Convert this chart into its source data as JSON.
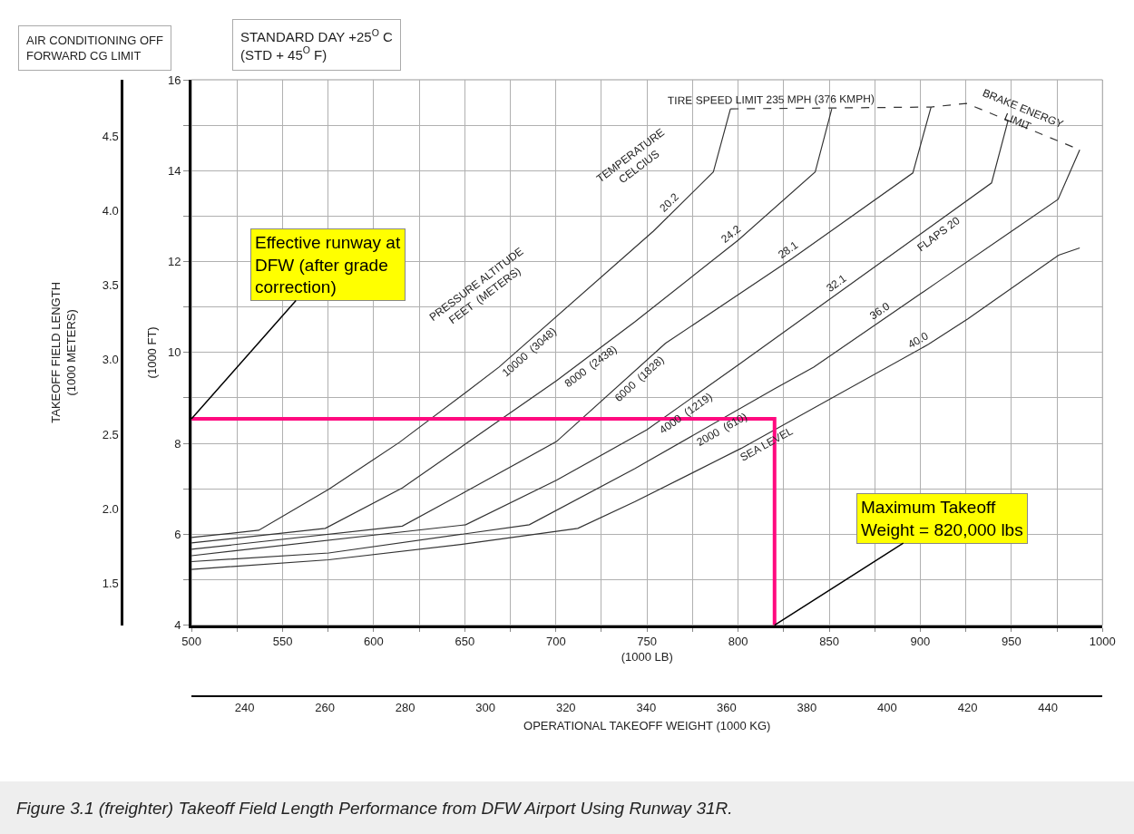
{
  "chart_data": {
    "type": "line",
    "xlabel": "(1000 LB)",
    "ylabel": "(1000 FT)",
    "x2label": "OPERATIONAL TAKEOFF WEIGHT (1000 KG)",
    "y2label": "TAKEOFF FIELD LENGTH\n(1000 METERS)",
    "xlim": [
      500,
      1000
    ],
    "ylim": [
      4,
      16
    ],
    "x2lim": [
      226.8,
      453.6
    ],
    "y2lim": [
      1.219,
      4.877
    ],
    "xticks": [
      500,
      {
        "value": 525,
        "label": null
      },
      550,
      {
        "value": 575,
        "label": null
      },
      600,
      {
        "value": 625,
        "label": null
      },
      650,
      {
        "value": 675,
        "label": null
      },
      700,
      {
        "value": 725,
        "label": null
      },
      750,
      {
        "value": 775,
        "label": null
      },
      800,
      {
        "value": 825,
        "label": null
      },
      850,
      {
        "value": 875,
        "label": null
      },
      900,
      {
        "value": 925,
        "label": null
      },
      950,
      {
        "value": 975,
        "label": null
      },
      1000
    ],
    "yticks": [
      4,
      {
        "value": 5,
        "label": null
      },
      6,
      {
        "value": 7,
        "label": null
      },
      8,
      {
        "value": 9,
        "label": null
      },
      10,
      {
        "value": 11,
        "label": null
      },
      12,
      {
        "value": 13,
        "label": null
      },
      14,
      {
        "value": 15,
        "label": null
      },
      16
    ],
    "x2ticks": [
      240,
      260,
      280,
      300,
      320,
      340,
      360,
      380,
      400,
      420,
      440
    ],
    "y2ticks": [
      1.5,
      {
        "value": 2,
        "label": "2.0"
      },
      2.5,
      {
        "value": 3,
        "label": "3.0"
      },
      3.5,
      {
        "value": 4,
        "label": "4.0"
      },
      4.5
    ],
    "grid": true,
    "marker": "none",
    "series": [
      {
        "color": "#333333",
        "x": [
          500,
          536.9,
          575.3,
          614,
          650.5,
          668.8,
          753.5,
          786.4,
          795.8
        ],
        "values": [
          5.93,
          6.09,
          6.99,
          8.02,
          9.12,
          9.68,
          12.67,
          13.97,
          15.36
        ]
      },
      {
        "color": "#333333",
        "x": [
          500,
          573.4,
          615.7,
          700.3,
          743.5,
          800,
          842.3,
          851.4
        ],
        "values": [
          5.81,
          6.13,
          7.02,
          9.38,
          10.68,
          12.47,
          13.97,
          15.36
        ]
      },
      {
        "color": "#333333",
        "x": [
          500,
          615.7,
          650.5,
          700.3,
          760.1,
          829.8,
          895.9,
          905.9
        ],
        "values": [
          5.67,
          6.18,
          6.94,
          8.04,
          10.2,
          12.07,
          13.95,
          15.4
        ]
      },
      {
        "color": "#333333",
        "x": [
          500,
          650.5,
          700.3,
          750,
          800.8,
          869.7,
          939.1,
          948
        ],
        "values": [
          5.53,
          6.21,
          7.19,
          8.3,
          9.75,
          11.73,
          13.73,
          15.08
        ]
      },
      {
        "color": "#333333",
        "x": [
          500,
          575.3,
          685.4,
          743.5,
          819.9,
          841.5,
          909.5,
          975.6,
          987.5
        ],
        "values": [
          5.4,
          5.59,
          6.21,
          7.45,
          9.2,
          9.68,
          11.55,
          13.37,
          14.46
        ]
      },
      {
        "color": "#333333",
        "x": [
          500,
          575.3,
          650.5,
          712,
          743.5,
          801.6,
          904.5,
          926.1,
          975.9,
          987.5
        ],
        "values": [
          5.23,
          5.44,
          5.79,
          6.13,
          6.72,
          7.89,
          10.18,
          10.74,
          12.14,
          12.3
        ]
      },
      {
        "color": "#333333",
        "line_style": "dashed",
        "x": [
          795.8,
          905.9,
          925.3,
          987.5
        ],
        "values": [
          15.36,
          15.4,
          15.48,
          14.46
        ]
      },
      {
        "color": "#ff0a7f",
        "x": [
          500,
          820,
          820
        ],
        "values": [
          8.54,
          8.54,
          4
        ]
      }
    ],
    "annotations": [
      "AIR CONDITIONING OFF\nFORWARD CG LIMIT",
      "STANDARD DAY +25$^{O}$ C\n(STD + 45$^{O}$ F)",
      "TEMPERATURE\nCELCIUS",
      "PRESSURE ALTITUDE\nFEET  (METERS)",
      "FLAPS 20",
      "Figure 3.1 (freighter) Takeoff Field Length Performance from DFW Airport Using Runway 31R.",
      {
        "text": "Effective runway at\nDFW (after grade\ncorrection)",
        "x": 500,
        "y": 8.54
      },
      {
        "text": "Maximum Takeoff\nWeight = 820,000 lbs",
        "x": 820,
        "y": 4
      },
      {
        "text": "20.2",
        "x": 765.9,
        "y": 13.16
      },
      {
        "text": "24.2",
        "x": 799.3,
        "y": 12.45
      },
      {
        "text": "28.1",
        "x": 830.7,
        "y": 12.1
      },
      {
        "text": "32.1",
        "x": 857.1,
        "y": 11.37
      },
      {
        "text": "36.0",
        "x": 880.5,
        "y": 10.75
      },
      {
        "text": "40.0",
        "x": 901.4,
        "y": 10.11
      },
      {
        "text": "10000  (3048)",
        "x": 682.3,
        "y": 10.16
      },
      {
        "text": "8000  (2438)",
        "x": 716.1,
        "y": 9.86
      },
      {
        "text": "6000  (1828)",
        "x": 742.5,
        "y": 9.56
      },
      {
        "text": "4000  (1219)",
        "x": 768.4,
        "y": 8.82
      },
      {
        "text": "2000  (610)",
        "x": 788.3,
        "y": 8.48
      },
      {
        "text": "SEA LEVEL",
        "x": 813.2,
        "y": 8.15
      },
      {
        "text": "TIRE SPEED LIMIT 235 MPH (376 KMPH)",
        "x": 818.2,
        "y": 15.37
      },
      {
        "text": "BRAKE ENERGY\nLIMIT",
        "x": 952.7,
        "y": 15.03
      }
    ]
  }
}
